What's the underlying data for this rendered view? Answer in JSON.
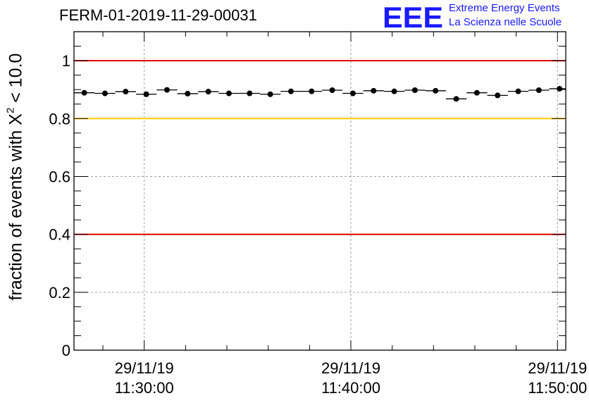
{
  "header": {
    "title": "FERM-01-2019-11-29-00031",
    "logo_letters": "EEE",
    "logo_line1": "Extreme Energy Events",
    "logo_line2": "La Scienza nelle Scuole",
    "logo_color": "#1a1aff"
  },
  "y_axis": {
    "label_prefix": "fraction of events with X",
    "label_superscript": "2",
    "label_suffix": " < 10.0"
  },
  "chart_data": {
    "type": "scatter",
    "title": "FERM-01-2019-11-29-00031",
    "xlabel": "",
    "ylabel": "fraction of events with X² < 10.0",
    "x_unit": "minutes since 11:00:00",
    "xlim": [
      26.6,
      50.4
    ],
    "ylim": [
      0,
      1.1
    ],
    "y_ticks": [
      0,
      0.2,
      0.4,
      0.6,
      0.8,
      1
    ],
    "y_tick_labels": [
      "0",
      "0.2",
      "0.4",
      "0.6",
      "0.8",
      "1"
    ],
    "x_ticks": [
      30,
      40,
      50
    ],
    "x_tick_labels": [
      {
        "date": "29/11/19",
        "time": "11:30:00"
      },
      {
        "date": "29/11/19",
        "time": "11:40:00"
      },
      {
        "date": "29/11/19",
        "time": "11:50:00"
      }
    ],
    "grid": true,
    "x_halfwidth": 0.5,
    "points": {
      "x": [
        27.1,
        28.1,
        29.1,
        30.1,
        31.1,
        32.1,
        33.1,
        34.1,
        35.1,
        36.1,
        37.1,
        38.1,
        39.1,
        40.1,
        41.1,
        42.1,
        43.1,
        44.1,
        45.1,
        46.1,
        47.1,
        48.1,
        49.1,
        50.1
      ],
      "y": [
        0.889,
        0.887,
        0.893,
        0.884,
        0.899,
        0.886,
        0.893,
        0.887,
        0.887,
        0.884,
        0.894,
        0.894,
        0.898,
        0.887,
        0.896,
        0.894,
        0.898,
        0.896,
        0.868,
        0.889,
        0.88,
        0.894,
        0.898,
        0.903
      ]
    },
    "reference_lines": [
      {
        "y": 1.0,
        "color": "#dd0000"
      },
      {
        "y": 0.8,
        "color": "#ffcc00"
      },
      {
        "y": 0.4,
        "color": "#dd0000"
      }
    ]
  }
}
